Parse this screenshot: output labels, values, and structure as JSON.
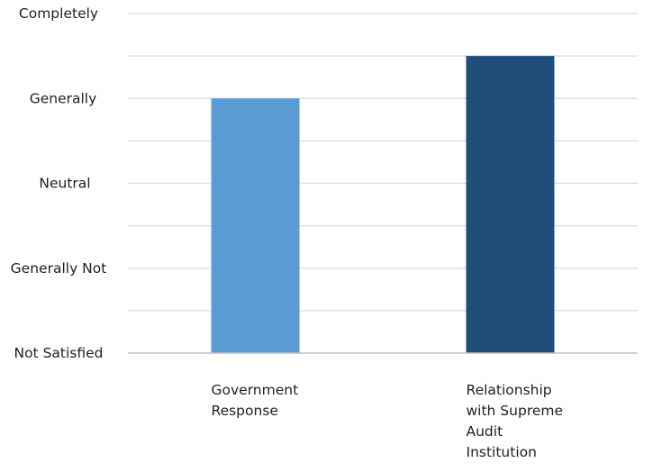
{
  "chart_data": {
    "type": "bar",
    "title": "",
    "xlabel": "",
    "ylabel": "",
    "y_tick_labels": [
      "Not Satisfied",
      "Generally Not",
      "Neutral",
      "Generally",
      "Completely"
    ],
    "ylim": [
      0,
      4
    ],
    "minor_gridlines": true,
    "categories": [
      [
        "Government",
        "Response"
      ],
      [
        "Relationship",
        "with Supreme",
        "Audit",
        "Institution"
      ]
    ],
    "series": [
      {
        "values": [
          3.0,
          3.5
        ]
      }
    ],
    "bar_colors": [
      "#5b9bd5",
      "#1f4e79"
    ]
  }
}
